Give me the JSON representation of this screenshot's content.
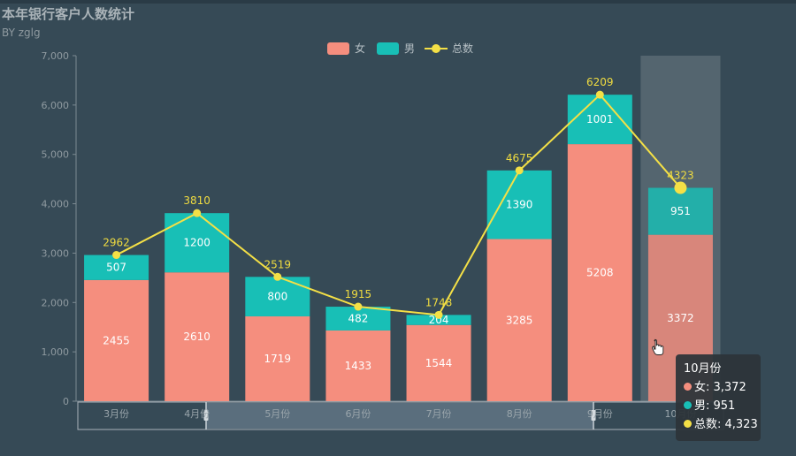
{
  "title": "本年银行客户人数统计",
  "subtitle": "BY zglg",
  "colors": {
    "female": "#f58e7e",
    "male": "#18bfb6",
    "total": "#f4e046"
  },
  "chart_data": {
    "type": "bar",
    "stacked": true,
    "title": "本年银行客户人数统计",
    "subtitle": "BY zglg",
    "categories": [
      "3月份",
      "4月份",
      "5月份",
      "6月份",
      "7月份",
      "8月份",
      "9月份",
      "10月份"
    ],
    "series": [
      {
        "name": "女",
        "type": "bar",
        "values": [
          2455,
          2610,
          1719,
          1433,
          1544,
          3285,
          5208,
          3372
        ]
      },
      {
        "name": "男",
        "type": "bar",
        "values": [
          507,
          1200,
          800,
          482,
          204,
          1390,
          1001,
          951
        ]
      },
      {
        "name": "总数",
        "type": "line",
        "values": [
          2962,
          3810,
          2519,
          1915,
          1748,
          4675,
          6209,
          4323
        ]
      }
    ],
    "ylim": [
      0,
      7000
    ],
    "yticks": [
      "0",
      "1,000",
      "2,000",
      "3,000",
      "4,000",
      "5,000",
      "6,000",
      "7,000"
    ],
    "ytick_values": [
      0,
      1000,
      2000,
      3000,
      4000,
      5000,
      6000,
      7000
    ],
    "legend_position": "top-center",
    "highlighted_category": "10月份"
  },
  "tooltip": {
    "title": "10月份",
    "rows": [
      {
        "label": "女: 3,372"
      },
      {
        "label": "男: 951"
      },
      {
        "label": "总数: 4,323"
      }
    ]
  }
}
